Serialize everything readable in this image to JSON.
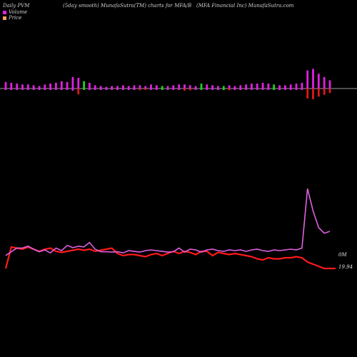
{
  "header": {
    "left": "Daily PVM",
    "center": "(5day smooth) MunafaSutra(TM) charts for MFA/B",
    "right": "(MFA Financial Inc) MunafaSutra.com"
  },
  "legend": {
    "items": [
      {
        "label": "Volume",
        "color": "#e020e0"
      },
      {
        "label": "Price",
        "color": "#f0a060"
      }
    ]
  },
  "labels": {
    "volume_right": "0M",
    "price_right": "19.94"
  },
  "chart_data": {
    "type": "bar+line",
    "volume_bars": {
      "values": [
        8,
        7,
        6,
        5,
        5,
        4,
        3,
        5,
        6,
        7,
        9,
        8,
        14,
        13,
        9,
        7,
        4,
        3,
        2,
        3,
        3,
        4,
        3,
        4,
        4,
        3,
        5,
        4,
        3,
        3,
        4,
        5,
        5,
        4,
        3,
        6,
        5,
        4,
        3,
        3,
        4,
        3,
        4,
        5,
        6,
        6,
        7,
        6,
        5,
        4,
        4,
        5,
        6,
        7,
        22,
        24,
        18,
        14,
        10
      ],
      "direction": [
        "up",
        "up",
        "up",
        "up",
        "up",
        "up",
        "up",
        "up",
        "up",
        "up",
        "up",
        "up",
        "up",
        "down",
        "up",
        "up",
        "up",
        "up",
        "up",
        "up",
        "up",
        "up",
        "up",
        "up",
        "down",
        "down",
        "up",
        "up",
        "up",
        "up",
        "up",
        "up",
        "down",
        "down",
        "up",
        "up",
        "up",
        "up",
        "up",
        "up",
        "down",
        "up",
        "up",
        "up",
        "up",
        "up",
        "up",
        "up",
        "up",
        "up",
        "up",
        "up",
        "up",
        "up",
        "down",
        "down",
        "down",
        "down",
        "down"
      ],
      "colors": {
        "up": "#e020e0",
        "down": "#e01818",
        "green": "#20d020"
      },
      "green_indices": [
        14,
        28,
        35,
        39,
        48
      ]
    },
    "price_line": {
      "series_color": "#ff1a1a",
      "values": [
        20.4,
        21.4,
        21.35,
        21.3,
        21.4,
        21.3,
        21.2,
        21.3,
        21.35,
        21.2,
        21.15,
        21.2,
        21.25,
        21.3,
        21.25,
        21.3,
        21.2,
        21.25,
        21.3,
        21.35,
        21.1,
        21.0,
        21.05,
        21.05,
        21.0,
        20.95,
        21.05,
        21.1,
        21.0,
        21.1,
        21.2,
        21.1,
        21.2,
        21.15,
        21.05,
        21.2,
        21.2,
        21.0,
        21.15,
        21.1,
        21.05,
        21.1,
        21.05,
        21.0,
        20.95,
        20.85,
        20.8,
        20.9,
        20.85,
        20.85,
        20.9,
        20.9,
        20.95,
        20.9,
        20.7,
        20.6,
        20.5,
        20.4,
        20.4
      ]
    },
    "volume_line": {
      "series_color": "#e060e0",
      "values": [
        0.35,
        0.45,
        0.55,
        0.55,
        0.6,
        0.52,
        0.45,
        0.5,
        0.42,
        0.55,
        0.48,
        0.62,
        0.56,
        0.6,
        0.58,
        0.7,
        0.52,
        0.45,
        0.45,
        0.44,
        0.45,
        0.42,
        0.48,
        0.46,
        0.44,
        0.48,
        0.5,
        0.48,
        0.46,
        0.44,
        0.45,
        0.55,
        0.44,
        0.52,
        0.5,
        0.44,
        0.5,
        0.52,
        0.48,
        0.46,
        0.5,
        0.48,
        0.5,
        0.46,
        0.5,
        0.52,
        0.48,
        0.46,
        0.5,
        0.48,
        0.5,
        0.52,
        0.5,
        0.55,
        2.15,
        1.55,
        1.1,
        0.95,
        1.0
      ]
    }
  }
}
